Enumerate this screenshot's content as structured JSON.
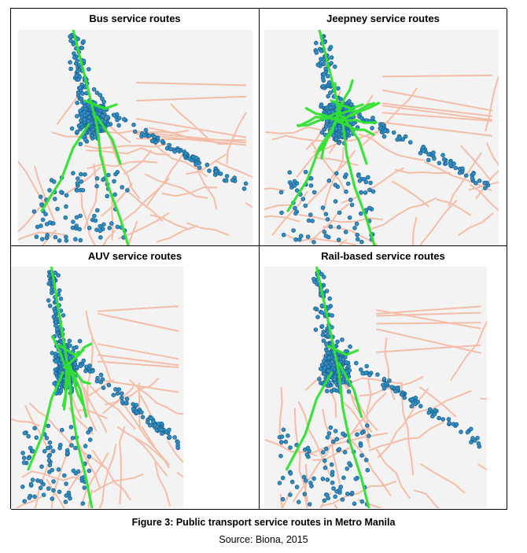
{
  "figure": {
    "title": "Figure 3: Public transport service routes in Metro Manila",
    "source": "Source: Biona, 2015"
  },
  "panels": [
    {
      "title": "Bus service routes",
      "density": 1.0,
      "green_extra": 0
    },
    {
      "title": "Jeepney service routes",
      "density": 1.05,
      "green_extra": 12
    },
    {
      "title": "AUV service routes",
      "density": 1.1,
      "green_extra": 6
    },
    {
      "title": "Rail-based service routes",
      "density": 1.0,
      "green_extra": 0
    }
  ],
  "colors": {
    "map_background": "#f3f3f3",
    "road_lines": "#f5b8a0",
    "service_routes": "#33e233",
    "stop_points": "#2f8fc6",
    "stop_outline": "#1d5e87"
  },
  "icons": [
    "stop-point",
    "route-line",
    "road-line"
  ]
}
